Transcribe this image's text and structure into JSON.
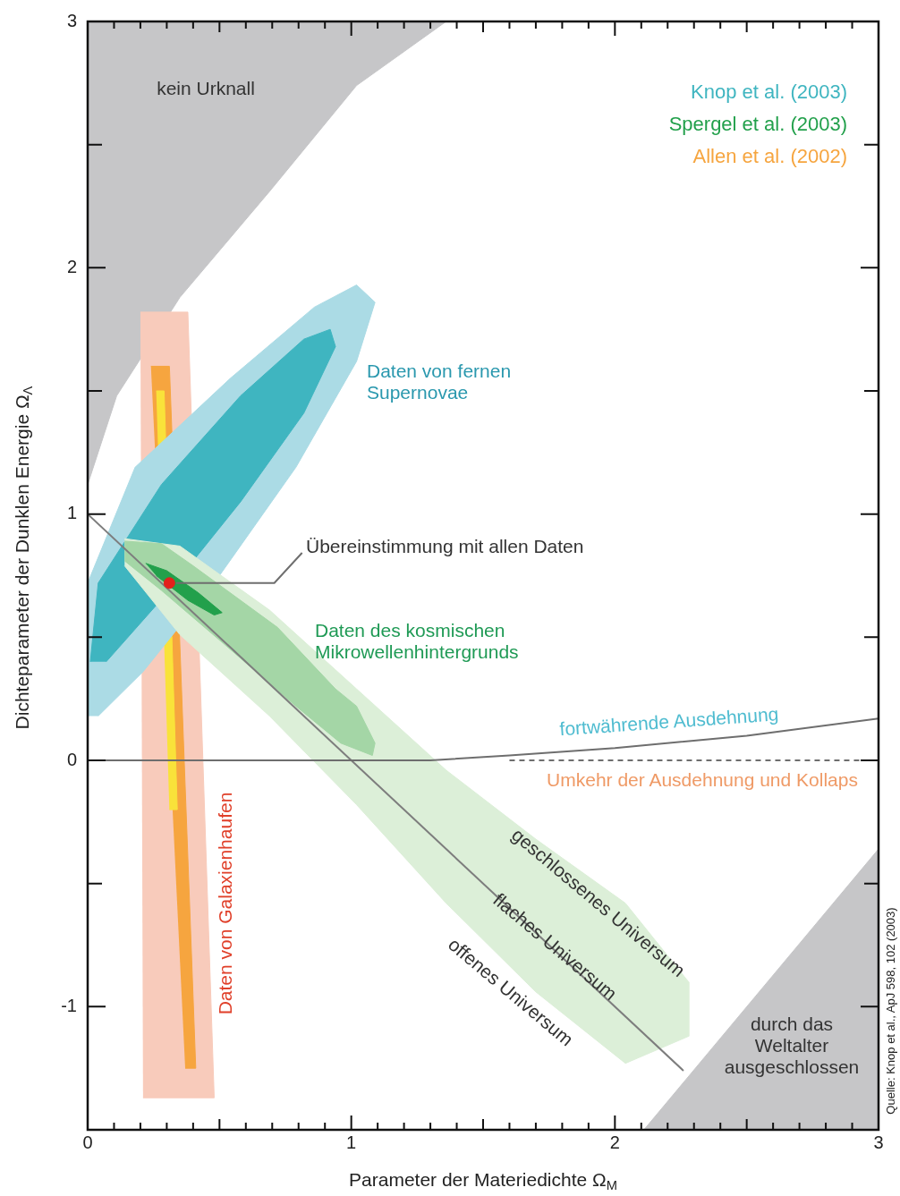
{
  "chart_data": {
    "type": "line",
    "xlabel": "Parameter der Materiedichte Ω$_{M}$",
    "ylabel": "Dichteparameter der Dunklen Energie Ω$_{Λ}$",
    "xlim": [
      0,
      3
    ],
    "ylim": [
      -1.5,
      3
    ],
    "xticks": [
      0,
      {
        "value": 0.1,
        "label": null
      },
      {
        "value": 0.2,
        "label": null
      },
      {
        "value": 0.3,
        "label": null
      },
      {
        "value": 0.4,
        "label": null
      },
      {
        "value": 0.5,
        "label": null
      },
      {
        "value": 0.6,
        "label": null
      },
      {
        "value": 0.7,
        "label": null
      },
      {
        "value": 0.8,
        "label": null
      },
      {
        "value": 0.9,
        "label": null
      },
      1,
      {
        "value": 1.1,
        "label": null
      },
      {
        "value": 1.2,
        "label": null
      },
      {
        "value": 1.3,
        "label": null
      },
      {
        "value": 1.4,
        "label": null
      },
      {
        "value": 1.5,
        "label": null
      },
      {
        "value": 1.6,
        "label": null
      },
      {
        "value": 1.7,
        "label": null
      },
      {
        "value": 1.8,
        "label": null
      },
      {
        "value": 1.9,
        "label": null
      },
      2,
      {
        "value": 2.1,
        "label": null
      },
      {
        "value": 2.2,
        "label": null
      },
      {
        "value": 2.3,
        "label": null
      },
      {
        "value": 2.4,
        "label": null
      },
      {
        "value": 2.5,
        "label": null
      },
      {
        "value": 2.6,
        "label": null
      },
      {
        "value": 2.7,
        "label": null
      },
      {
        "value": 2.8,
        "label": null
      },
      {
        "value": 2.9,
        "label": null
      },
      3
    ],
    "yticks": [
      {
        "value": -1.5,
        "label": null
      },
      -1,
      {
        "value": -0.5,
        "label": null
      },
      0,
      {
        "value": 0.5,
        "label": null
      },
      1,
      {
        "value": 1.5,
        "label": null
      },
      2,
      {
        "value": 2.5,
        "label": null
      },
      3
    ],
    "grid": false,
    "legend": "top right",
    "series": [
      {
        "type": "area",
        "color": "#c6c6c8",
        "x": [
          0,
          0.11,
          0.35,
          0.69,
          1.02,
          1.36,
          0
        ],
        "values": [
          1.12,
          1.48,
          1.88,
          2.31,
          2.74,
          3,
          3
        ]
      },
      {
        "type": "area",
        "color": "#c6c6c8",
        "x": [
          2.11,
          3,
          3
        ],
        "values": [
          -1.5,
          -0.36,
          -1.5
        ]
      },
      {
        "type": "area",
        "color": "#abdbe5",
        "x": [
          0,
          0,
          0.18,
          0.54,
          0.86,
          1.02,
          1.09,
          1.02,
          0.79,
          0.48,
          0.21,
          0.04
        ],
        "values": [
          0.18,
          0.72,
          1.19,
          1.55,
          1.84,
          1.93,
          1.86,
          1.62,
          1.19,
          0.72,
          0.36,
          0.18
        ]
      },
      {
        "type": "area",
        "name": "Knop et al. (2003)",
        "color": "#3fb5c0",
        "x": [
          0.01,
          0.04,
          0.28,
          0.58,
          0.82,
          0.92,
          0.94,
          0.82,
          0.58,
          0.31,
          0.07
        ],
        "values": [
          0.4,
          0.72,
          1.12,
          1.48,
          1.71,
          1.75,
          1.68,
          1.41,
          1.05,
          0.69,
          0.4
        ]
      },
      {
        "type": "area",
        "color": "#dcefd8",
        "x": [
          0.14,
          0.35,
          0.69,
          1.02,
          1.36,
          1.7,
          2.04,
          2.28,
          2.28,
          2.04,
          1.7,
          1.36,
          1.02,
          0.69,
          0.35,
          0.14
        ],
        "values": [
          0.9,
          0.87,
          0.61,
          0.29,
          -0.04,
          -0.32,
          -0.58,
          -0.9,
          -1.12,
          -1.23,
          -0.94,
          -0.58,
          -0.18,
          0.18,
          0.51,
          0.79
        ]
      },
      {
        "type": "area",
        "color": "#a4d6a6",
        "x": [
          0.14,
          0.28,
          0.4,
          0.72,
          0.94,
          1.02,
          1.09,
          1.08,
          0.96,
          0.79,
          0.52,
          0.28,
          0.14
        ],
        "values": [
          0.89,
          0.88,
          0.79,
          0.54,
          0.29,
          0.22,
          0.07,
          0.02,
          0.07,
          0.22,
          0.47,
          0.69,
          0.81
        ]
      },
      {
        "type": "area",
        "name": "Spergel et al. (2003)",
        "color": "#22a04b",
        "x": [
          0.22,
          0.3,
          0.42,
          0.51,
          0.48,
          0.38,
          0.26
        ],
        "values": [
          0.8,
          0.77,
          0.68,
          0.6,
          0.59,
          0.65,
          0.75
        ]
      },
      {
        "type": "area",
        "color": "#f8cbbb",
        "x": [
          0.2,
          0.38,
          0.48,
          0.21
        ],
        "values": [
          1.82,
          1.82,
          -1.37,
          -1.37
        ]
      },
      {
        "type": "area",
        "name": "Allen et al. (2002)",
        "color": "#f6a53f",
        "x": [
          0.24,
          0.31,
          0.41,
          0.37
        ],
        "values": [
          1.6,
          1.6,
          -1.25,
          -1.25
        ]
      },
      {
        "type": "area",
        "color": "#f9e23a",
        "x": [
          0.26,
          0.29,
          0.34,
          0.31
        ],
        "values": [
          1.5,
          1.5,
          -0.2,
          -0.2
        ]
      },
      {
        "type": "line",
        "color": "#7d7d7d",
        "x": [
          0,
          2.26
        ],
        "values": [
          1,
          -1.26
        ]
      },
      {
        "type": "line",
        "color": "#6e6e6e",
        "x": [
          0,
          1,
          1.3,
          1.6,
          2,
          2.5,
          3
        ],
        "values": [
          0,
          0,
          0,
          0.02,
          0.05,
          0.1,
          0.17
        ]
      },
      {
        "type": "line",
        "color": "#6e6e6e",
        "line_style": "dashed",
        "x": [
          1.6,
          3
        ],
        "values": [
          0,
          0
        ]
      },
      {
        "type": "scatter",
        "color": "#e3201b",
        "marker": "circle",
        "x": [
          0.31
        ],
        "values": [
          0.72
        ]
      }
    ],
    "annotations": [
      "kein Urknall",
      "Daten von fernen Supernovae",
      {
        "text": "Übereinstimmung mit allen Daten",
        "x": 0.31,
        "y": 0.72
      },
      "Daten des kosmischen Mikrowellenhintergrunds",
      "fortwährende Ausdehnung",
      "Umkehr der Ausdehnung und Kollaps",
      "geschlossenes Universum",
      {
        "text": "flaches Universum",
        "x": 1.77,
        "y": -0.76
      },
      "offenes Universum",
      "Daten von Galaxienhaufen",
      "durch das Weltalter ausgeschlossen",
      "Quelle: Knop et al., ApJ 598, 102 (2003)"
    ]
  }
}
